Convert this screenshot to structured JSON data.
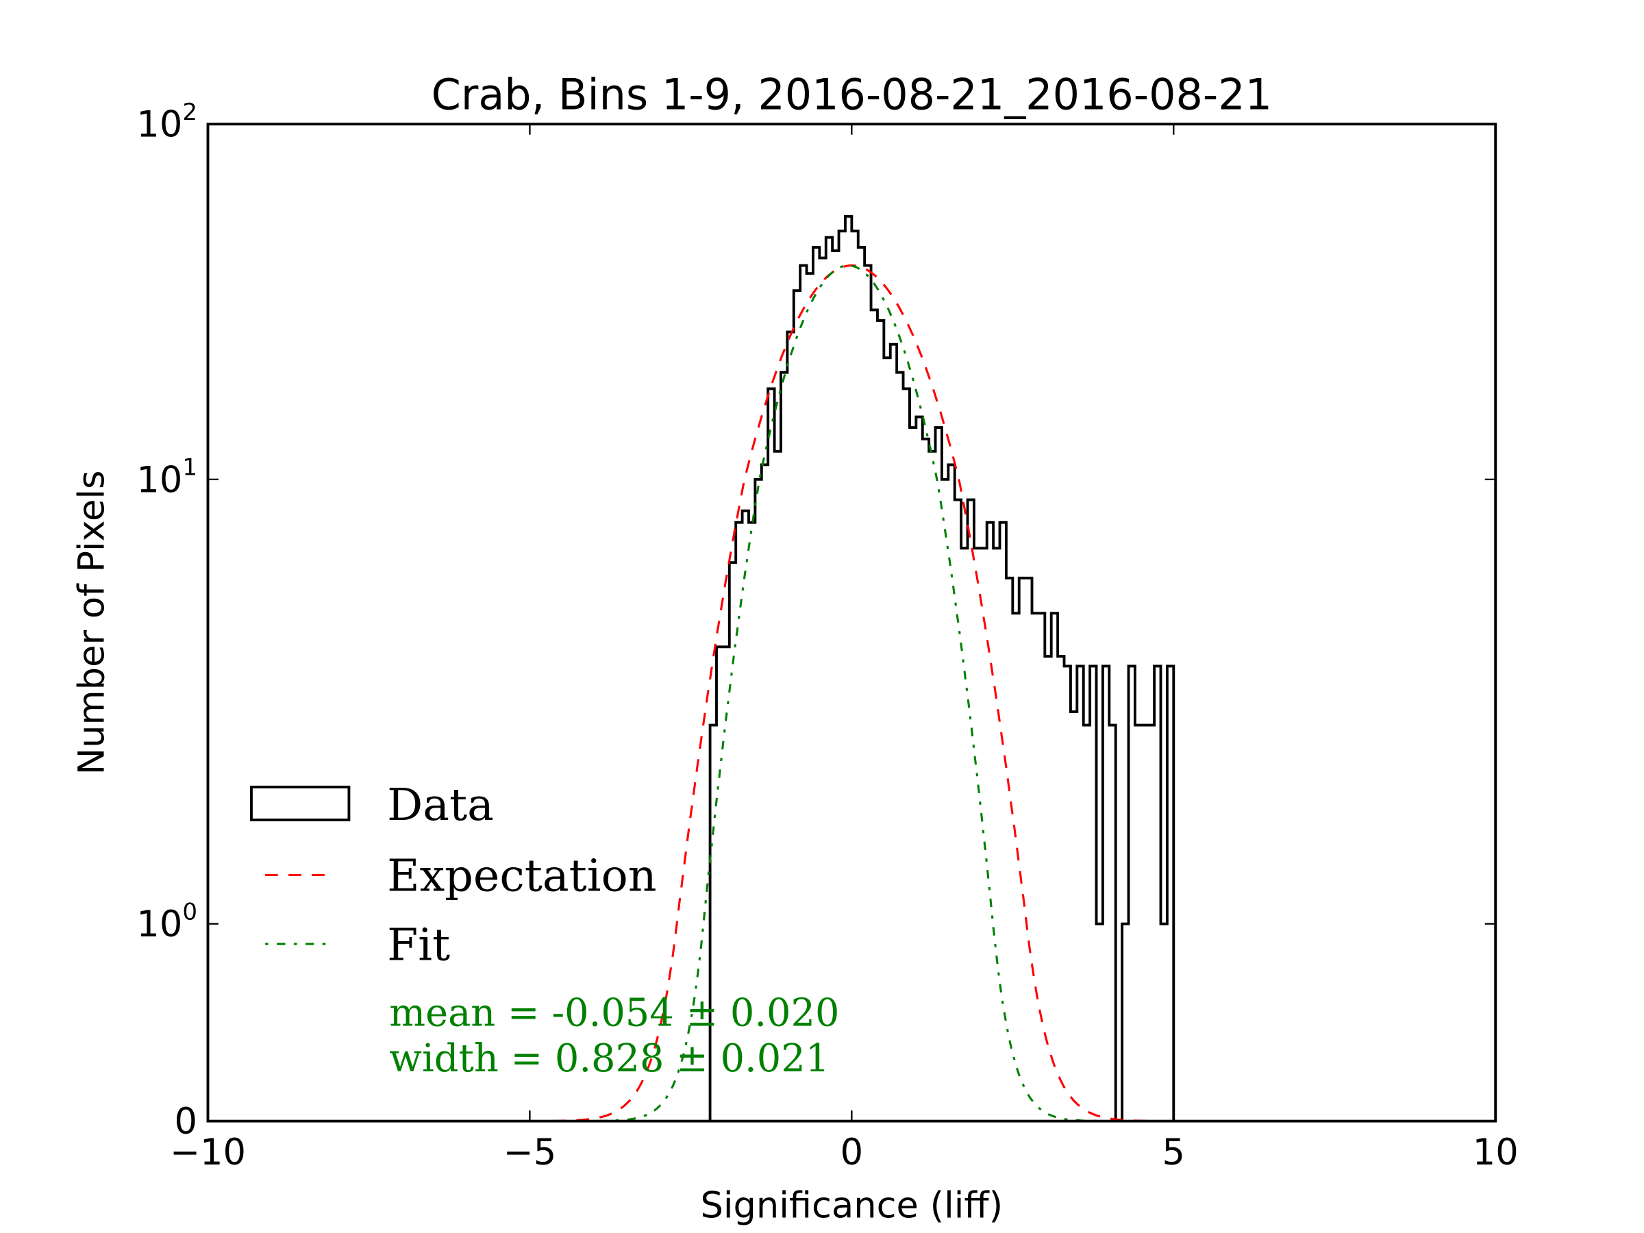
{
  "chart_data": {
    "type": "histogram",
    "title": "Crab, Bins 1-9, 2016-08-21_2016-08-21",
    "xlabel": "Significance (liff)",
    "ylabel": "Number of Pixels",
    "xlim": [
      -10,
      10
    ],
    "ylim": [
      0,
      100
    ],
    "yscale": "symlog",
    "x_ticks": [
      "−10",
      "−5",
      "0",
      "5",
      "10"
    ],
    "x_tick_values": [
      -10,
      -5,
      0,
      5,
      10
    ],
    "y_ticks": [
      {
        "value": 100,
        "base": "10",
        "exp": "2"
      },
      {
        "value": 10,
        "base": "10",
        "exp": "1"
      },
      {
        "value": 1,
        "base": "10",
        "exp": "0"
      },
      {
        "value": 0,
        "base": "0",
        "exp": ""
      }
    ],
    "histogram": {
      "name": "Data",
      "bin_start": -2.2,
      "bin_width": 0.1,
      "counts": [
        2.8,
        4.2,
        4.2,
        6.5,
        8,
        8.5,
        8,
        10,
        11,
        18,
        12,
        20,
        26,
        34,
        40,
        38,
        45,
        42,
        48,
        44,
        50,
        55,
        50,
        45,
        40,
        30,
        28,
        22,
        24,
        20,
        18,
        14,
        15,
        13,
        12,
        14,
        10,
        11,
        9,
        7,
        9,
        7,
        7,
        8,
        7,
        8,
        6,
        5,
        6,
        6,
        5,
        5,
        4,
        5,
        4,
        3.8,
        3,
        3.8,
        2.8,
        3.8,
        1,
        3.8,
        2.8,
        0,
        1,
        3.8,
        2.8,
        2.8,
        2.8,
        3.8,
        1,
        3.8
      ]
    },
    "series": [
      {
        "name": "Expectation",
        "type": "gaussian",
        "mean": 0.0,
        "width": 1.0,
        "amplitude": 40,
        "color": "#ff0000",
        "style": "dashed"
      },
      {
        "name": "Fit",
        "type": "gaussian",
        "mean": -0.054,
        "width": 0.828,
        "amplitude": 40,
        "color": "#008000",
        "style": "dash-dot"
      }
    ],
    "legend": {
      "placement": "lower-left",
      "entries": [
        "Data",
        "Expectation",
        "Fit"
      ]
    },
    "annotations": {
      "mean": "mean = -0.054 ± 0.020",
      "width": "width = 0.828 ± 0.021",
      "color": "#008000"
    }
  }
}
